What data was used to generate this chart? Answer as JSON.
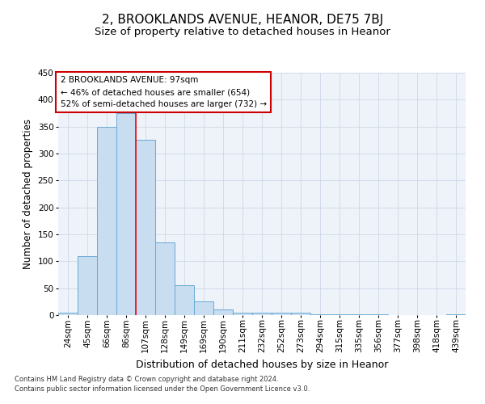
{
  "title1": "2, BROOKLANDS AVENUE, HEANOR, DE75 7BJ",
  "title2": "Size of property relative to detached houses in Heanor",
  "xlabel": "Distribution of detached houses by size in Heanor",
  "ylabel": "Number of detached properties",
  "categories": [
    "24sqm",
    "45sqm",
    "66sqm",
    "86sqm",
    "107sqm",
    "128sqm",
    "149sqm",
    "169sqm",
    "190sqm",
    "211sqm",
    "232sqm",
    "252sqm",
    "273sqm",
    "294sqm",
    "315sqm",
    "335sqm",
    "356sqm",
    "377sqm",
    "398sqm",
    "418sqm",
    "439sqm"
  ],
  "values": [
    5,
    110,
    350,
    375,
    325,
    135,
    55,
    25,
    10,
    5,
    5,
    5,
    5,
    2,
    2,
    2,
    2,
    0,
    0,
    0,
    2
  ],
  "bar_color": "#c8ddf0",
  "bar_edge_color": "#6aaad4",
  "grid_color": "#cdd8e8",
  "bg_color": "#eef2f9",
  "red_line_x": 3.5,
  "annotation_lines": [
    "2 BROOKLANDS AVENUE: 97sqm",
    "← 46% of detached houses are smaller (654)",
    "52% of semi-detached houses are larger (732) →"
  ],
  "annotation_box_color": "#ffffff",
  "annotation_box_edge": "#cc0000",
  "footnote1": "Contains HM Land Registry data © Crown copyright and database right 2024.",
  "footnote2": "Contains public sector information licensed under the Open Government Licence v3.0.",
  "ylim": [
    0,
    450
  ],
  "title1_fontsize": 11,
  "title2_fontsize": 9.5,
  "xlabel_fontsize": 9,
  "ylabel_fontsize": 8.5,
  "tick_fontsize": 7.5,
  "annot_fontsize": 7.5,
  "footnote_fontsize": 6
}
